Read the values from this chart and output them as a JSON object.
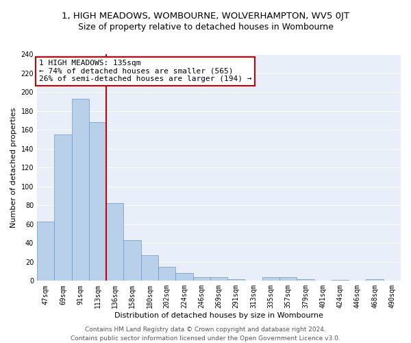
{
  "title": "1, HIGH MEADOWS, WOMBOURNE, WOLVERHAMPTON, WV5 0JT",
  "subtitle": "Size of property relative to detached houses in Wombourne",
  "xlabel": "Distribution of detached houses by size in Wombourne",
  "ylabel": "Number of detached properties",
  "bar_color": "#b8d0ea",
  "bar_edge_color": "#6699cc",
  "background_color": "#e8eff8",
  "grid_color": "#ffffff",
  "categories": [
    "47sqm",
    "69sqm",
    "91sqm",
    "113sqm",
    "136sqm",
    "158sqm",
    "180sqm",
    "202sqm",
    "224sqm",
    "246sqm",
    "269sqm",
    "291sqm",
    "313sqm",
    "335sqm",
    "357sqm",
    "379sqm",
    "401sqm",
    "424sqm",
    "446sqm",
    "468sqm",
    "490sqm"
  ],
  "values": [
    63,
    155,
    193,
    168,
    82,
    43,
    27,
    15,
    8,
    4,
    4,
    2,
    0,
    4,
    4,
    2,
    0,
    1,
    0,
    2,
    0
  ],
  "vline_x": 3.5,
  "annotation_line1": "1 HIGH MEADOWS: 135sqm",
  "annotation_line2": "← 74% of detached houses are smaller (565)",
  "annotation_line3": "26% of semi-detached houses are larger (194) →",
  "annotation_box_color": "#ffffff",
  "annotation_box_edge": "#cc0000",
  "vline_color": "#cc0000",
  "ylim": [
    0,
    240
  ],
  "yticks": [
    0,
    20,
    40,
    60,
    80,
    100,
    120,
    140,
    160,
    180,
    200,
    220,
    240
  ],
  "footer_line1": "Contains HM Land Registry data © Crown copyright and database right 2024.",
  "footer_line2": "Contains public sector information licensed under the Open Government Licence v3.0.",
  "title_fontsize": 9.5,
  "subtitle_fontsize": 9,
  "axis_label_fontsize": 8,
  "tick_fontsize": 7,
  "annotation_fontsize": 8,
  "footer_fontsize": 6.5
}
